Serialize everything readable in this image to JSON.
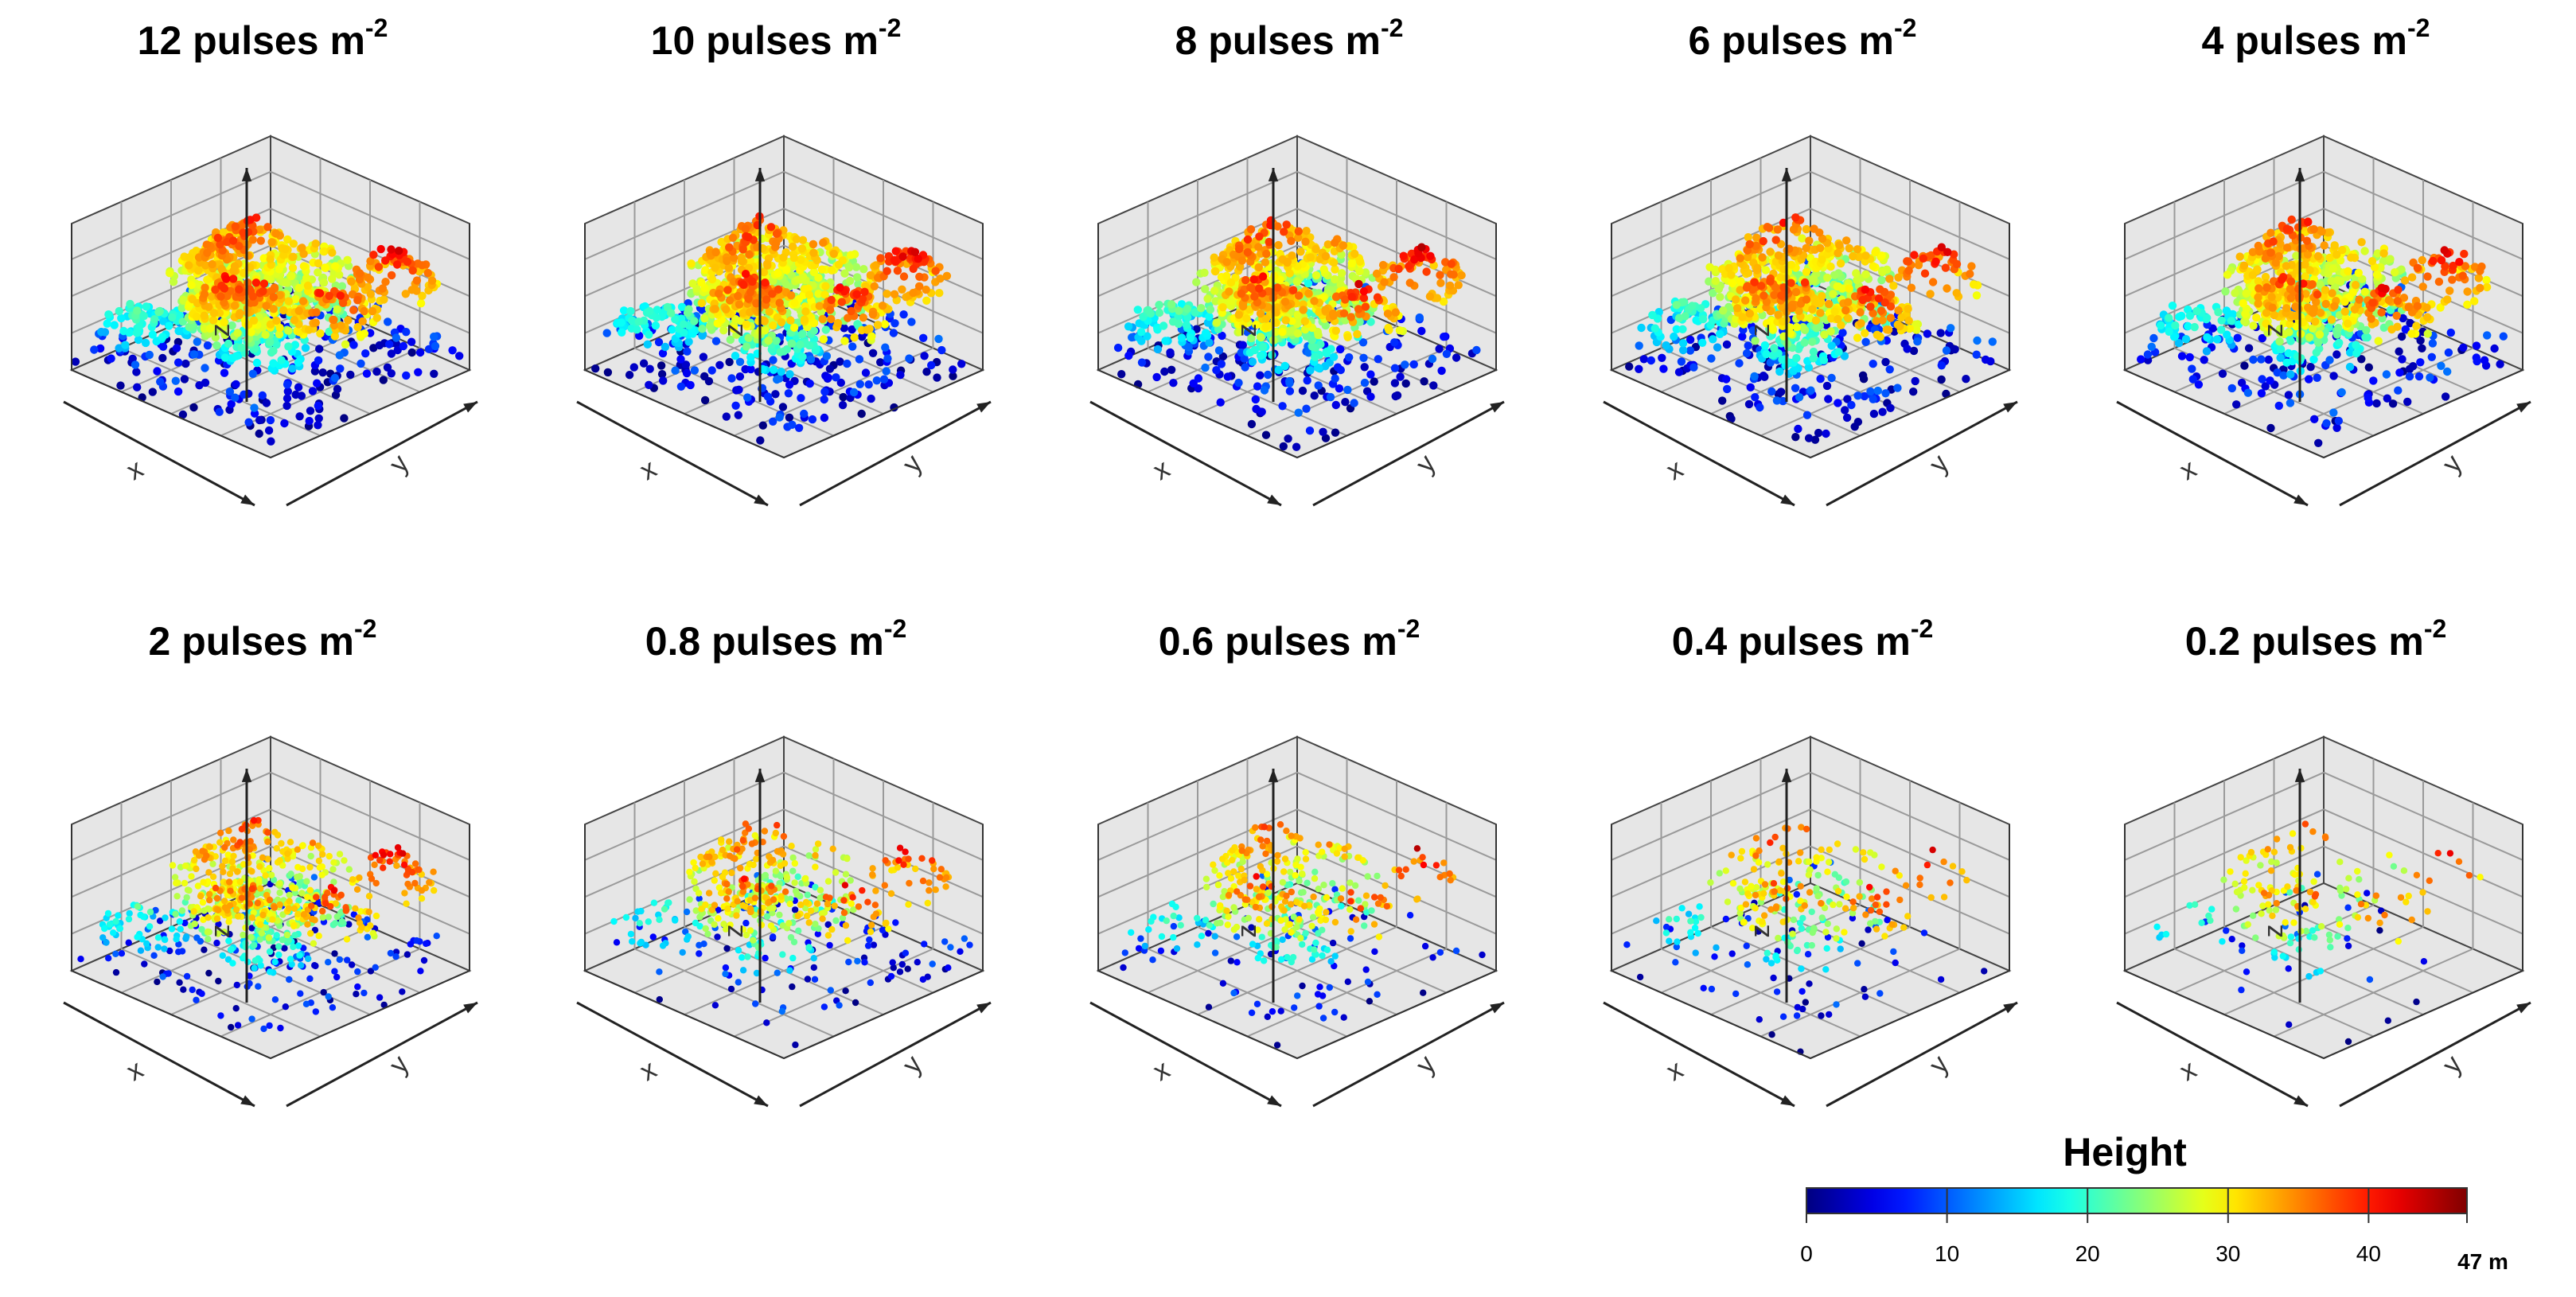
{
  "chart_data": {
    "type": "scatter",
    "title": "",
    "description_axes": {
      "x_axis_label": "x",
      "y_axis_label": "y",
      "z_axis_label": "z"
    },
    "panels": [
      {
        "density": "12",
        "title_prefix": "12 pulses m",
        "title_sup": "-2",
        "points": 1400
      },
      {
        "density": "10",
        "title_prefix": "10 pulses m",
        "title_sup": "-2",
        "points": 1300
      },
      {
        "density": "8",
        "title_prefix": "8 pulses m",
        "title_sup": "-2",
        "points": 1200
      },
      {
        "density": "6",
        "title_prefix": "6 pulses m",
        "title_sup": "-2",
        "points": 1100
      },
      {
        "density": "4",
        "title_prefix": "4 pulses m",
        "title_sup": "-2",
        "points": 1000
      },
      {
        "density": "2",
        "title_prefix": "2 pulses m",
        "title_sup": "-2",
        "points": 850
      },
      {
        "density": "0.8",
        "title_prefix": "0.8 pulses m",
        "title_sup": "-2",
        "points": 520
      },
      {
        "density": "0.6",
        "title_prefix": "0.6 pulses m",
        "title_sup": "-2",
        "points": 420
      },
      {
        "density": "0.4",
        "title_prefix": "0.4 pulses m",
        "title_sup": "-2",
        "points": 300
      },
      {
        "density": "0.2",
        "title_prefix": "0.2 pulses m",
        "title_sup": "-2",
        "points": 180
      }
    ],
    "colorbar": {
      "title": "Height",
      "min": 0,
      "max": 47,
      "ticks": [
        0,
        10,
        20,
        30,
        40
      ],
      "tick_labels": [
        "0",
        "10",
        "20",
        "30",
        "40"
      ],
      "max_label": "47 m",
      "colormap": [
        "#00008f",
        "#0000ff",
        "#0080ff",
        "#00ffff",
        "#80ff80",
        "#ffff00",
        "#ff8000",
        "#ff0000",
        "#800000"
      ]
    }
  }
}
